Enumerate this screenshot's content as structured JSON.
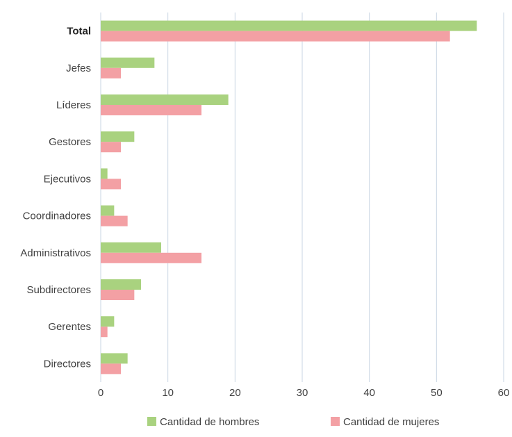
{
  "chart_data": {
    "type": "bar",
    "orientation": "horizontal",
    "categories": [
      "Total",
      "Jefes",
      "Líderes",
      "Gestores",
      "Ejecutivos",
      "Coordinadores",
      "Administrativos",
      "Subdirectores",
      "Gerentes",
      "Directores"
    ],
    "series": [
      {
        "name": "Cantidad de hombres",
        "color": "#a9d27f",
        "values": [
          56,
          8,
          19,
          5,
          1,
          2,
          9,
          6,
          2,
          4
        ]
      },
      {
        "name": "Cantidad de mujeres",
        "color": "#f3a0a4",
        "values": [
          52,
          3,
          15,
          3,
          3,
          4,
          15,
          5,
          1,
          3
        ]
      }
    ],
    "xlim": [
      0,
      60
    ],
    "x_ticks": [
      "0",
      "10",
      "20",
      "30",
      "40",
      "50",
      "60"
    ],
    "gridlines": "vertical",
    "grid_color": "#c9d6e3",
    "bold_category": "Total",
    "legend_position": "bottom",
    "title": "",
    "xlabel": "",
    "ylabel": ""
  }
}
